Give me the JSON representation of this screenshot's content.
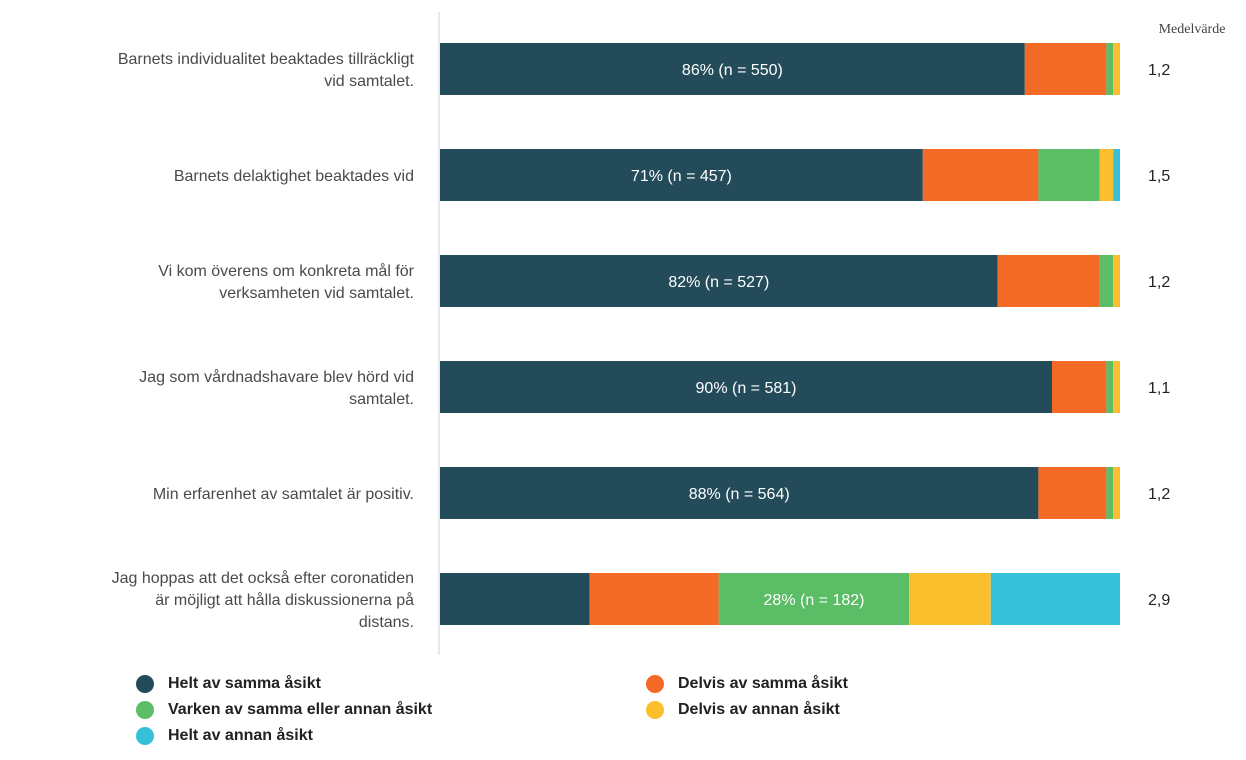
{
  "chart_data": {
    "type": "bar",
    "orientation": "horizontal",
    "stacked": true,
    "categories": [
      [
        "Barnets individualitet beaktades tillräckligt",
        "vid samtalet."
      ],
      [
        "Barnets delaktighet beaktades vid"
      ],
      [
        "Vi kom överens om konkreta mål för",
        "verksamheten vid samtalet."
      ],
      [
        "Jag som vårdnadshavare blev hörd vid",
        "samtalet."
      ],
      [
        "Min erfarenhet av samtalet är positiv."
      ],
      [
        "Jag hoppas att det också efter coronatiden",
        "är möjligt att hålla diskussionerna på",
        "distans."
      ]
    ],
    "series": [
      {
        "name": "Helt av samma åsikt",
        "color": "#234b5a",
        "values": [
          86,
          71,
          82,
          90,
          88,
          22
        ]
      },
      {
        "name": "Delvis av samma åsikt",
        "color": "#f26a25",
        "values": [
          12,
          17,
          15,
          8,
          10,
          19
        ]
      },
      {
        "name": "Varken av samma eller annan åsikt",
        "color": "#5bbd65",
        "values": [
          1,
          9,
          2,
          1,
          1,
          28
        ]
      },
      {
        "name": "Delvis av annan åsikt",
        "color": "#fbbe2c",
        "values": [
          1,
          2,
          1,
          1,
          1,
          12
        ]
      },
      {
        "name": "Helt av annan åsikt",
        "color": "#35c2d8",
        "values": [
          0,
          1,
          0,
          0,
          0,
          19
        ]
      }
    ],
    "bar_labels": [
      {
        "series": 0,
        "text": "86% (n = 550)"
      },
      {
        "series": 0,
        "text": "71% (n = 457)"
      },
      {
        "series": 0,
        "text": "82% (n = 527)"
      },
      {
        "series": 0,
        "text": "90% (n = 581)"
      },
      {
        "series": 0,
        "text": "88% (n = 564)"
      },
      {
        "series": 2,
        "text": "28% (n = 182)"
      }
    ],
    "mean_title": "Medelvärde",
    "mean_values": [
      "1,2",
      "1,5",
      "1,2",
      "1,1",
      "1,2",
      "2,9"
    ],
    "xlim": [
      0,
      100
    ],
    "legend_position": "bottom"
  }
}
